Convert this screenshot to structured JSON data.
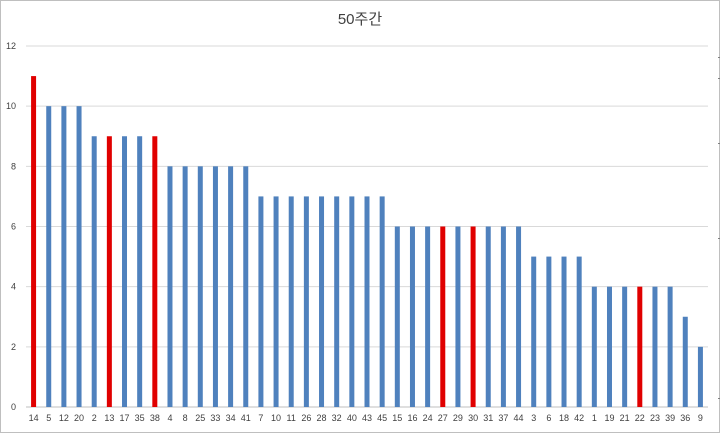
{
  "chart_data": {
    "type": "bar",
    "title": "50주간",
    "xlabel": "",
    "ylabel": "",
    "ylim": [
      0,
      12
    ],
    "yticks": [
      0,
      2,
      4,
      6,
      8,
      10,
      12
    ],
    "grid": true,
    "legend": "none",
    "categories": [
      "14",
      "5",
      "12",
      "20",
      "2",
      "13",
      "17",
      "35",
      "38",
      "4",
      "8",
      "25",
      "33",
      "34",
      "41",
      "7",
      "10",
      "11",
      "26",
      "28",
      "32",
      "40",
      "43",
      "45",
      "15",
      "16",
      "24",
      "27",
      "29",
      "30",
      "31",
      "37",
      "44",
      "3",
      "6",
      "18",
      "42",
      "1",
      "19",
      "21",
      "22",
      "23",
      "39",
      "36",
      "9"
    ],
    "values": [
      11,
      10,
      10,
      10,
      9,
      9,
      9,
      9,
      9,
      8,
      8,
      8,
      8,
      8,
      8,
      7,
      7,
      7,
      7,
      7,
      7,
      7,
      7,
      7,
      6,
      6,
      6,
      6,
      6,
      6,
      6,
      6,
      6,
      5,
      5,
      5,
      5,
      4,
      4,
      4,
      4,
      4,
      4,
      3,
      2
    ],
    "highlighted_categories": [
      "14",
      "13",
      "38",
      "27",
      "30",
      "22"
    ],
    "colors": {
      "bar": "#4f81bd",
      "highlight": "#e00000",
      "grid": "#d9d9d9",
      "axis": "#bfbfbf",
      "text": "#404040"
    }
  }
}
